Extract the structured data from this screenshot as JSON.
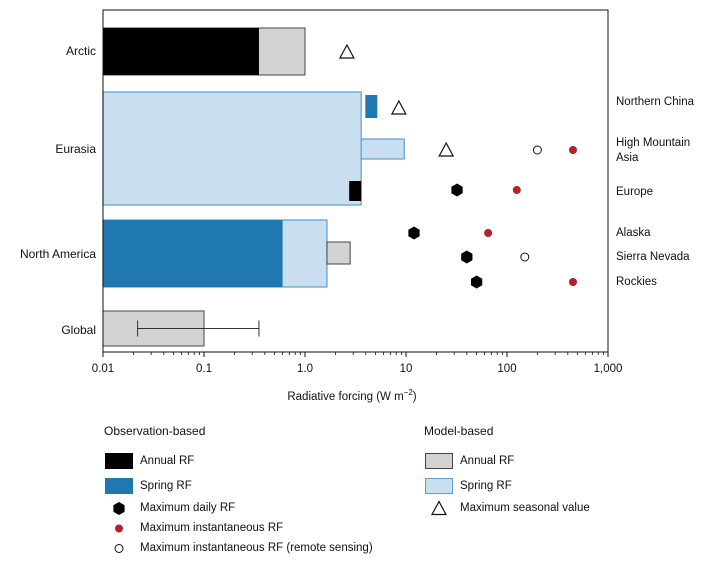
{
  "chart_data": {
    "type": "bar",
    "scale": "log",
    "xlabel": "Radiative forcing (W m",
    "xlabel_sup": "−2",
    "xlabel_end": ")",
    "xlim": [
      0.01,
      1000
    ],
    "ticks": [
      {
        "value": 0.01,
        "label": "0.01"
      },
      {
        "value": 0.1,
        "label": "0.1"
      },
      {
        "value": 1,
        "label": "1.0"
      },
      {
        "value": 10,
        "label": "10"
      },
      {
        "value": 100,
        "label": "100"
      },
      {
        "value": 1000,
        "label": "1,000"
      }
    ],
    "categories": [
      "Arctic",
      "Eurasia",
      "North America",
      "Global"
    ],
    "bars": [
      {
        "category": "Arctic",
        "kind": "model-annual",
        "value": 1.0
      },
      {
        "category": "Arctic",
        "kind": "obs-annual",
        "value": 0.35
      },
      {
        "category": "Eurasia",
        "kind": "model-spring",
        "value": 3.6
      },
      {
        "category": "Eurasia",
        "kind": "obs-spring",
        "value": 5.2,
        "region": "Northern China"
      },
      {
        "category": "Eurasia",
        "kind": "model-spring",
        "value": 9.6,
        "region": "High Mountain Asia"
      },
      {
        "category": "Eurasia",
        "kind": "obs-annual",
        "value": 3.6,
        "region": "Europe"
      },
      {
        "category": "North America",
        "kind": "model-spring",
        "value": 1.65
      },
      {
        "category": "North America",
        "kind": "obs-spring",
        "value": 0.6
      },
      {
        "category": "North America",
        "kind": "model-annual",
        "value": 2.8,
        "region": "Sierra Nevada"
      },
      {
        "category": "Global",
        "kind": "model-annual",
        "value": 0.1,
        "error": [
          0.022,
          0.35
        ]
      }
    ],
    "regions": [
      "Northern China",
      "High Mountain Asia",
      "Europe",
      "Alaska",
      "Sierra Nevada",
      "Rockies"
    ],
    "markers": [
      {
        "category": "Arctic",
        "type": "max-seasonal",
        "value": 2.6
      },
      {
        "region": "Northern China",
        "type": "max-seasonal",
        "value": 8.5
      },
      {
        "region": "High Mountain Asia",
        "type": "max-seasonal",
        "value": 25
      },
      {
        "region": "High Mountain Asia",
        "type": "max-inst-remote",
        "value": 200
      },
      {
        "region": "High Mountain Asia",
        "type": "max-inst",
        "value": 450
      },
      {
        "region": "Europe",
        "type": "max-daily",
        "value": 32
      },
      {
        "region": "Europe",
        "type": "max-inst",
        "value": 125
      },
      {
        "region": "Alaska",
        "type": "max-daily",
        "value": 12
      },
      {
        "region": "Alaska",
        "type": "max-inst",
        "value": 65
      },
      {
        "region": "Sierra Nevada",
        "type": "max-daily",
        "value": 40
      },
      {
        "region": "Sierra Nevada",
        "type": "max-inst-remote",
        "value": 150
      },
      {
        "region": "Rockies",
        "type": "max-daily",
        "value": 50
      },
      {
        "region": "Rockies",
        "type": "max-inst",
        "value": 450
      }
    ],
    "colors": {
      "obs-annual": "#000000",
      "obs-spring": "#1f78b0",
      "model-annual": "#d3d3d3",
      "model-spring": "#c9dff0",
      "model-spring-edge": "#5a9fd0",
      "max-inst": "#b3202a"
    }
  },
  "legend": {
    "observation": {
      "title": "Observation-based",
      "items": [
        {
          "type": "obs-annual",
          "label": "Annual RF"
        },
        {
          "type": "obs-spring",
          "label": "Spring RF"
        },
        {
          "type": "max-daily",
          "label": "Maximum daily RF"
        },
        {
          "type": "max-inst",
          "label": "Maximum instantaneous RF"
        },
        {
          "type": "max-inst-remote",
          "label": "Maximum instantaneous RF (remote sensing)"
        }
      ]
    },
    "model": {
      "title": "Model-based",
      "items": [
        {
          "type": "model-annual",
          "label": "Annual RF"
        },
        {
          "type": "model-spring",
          "label": "Spring RF"
        },
        {
          "type": "max-seasonal",
          "label": "Maximum seasonal value"
        }
      ]
    }
  }
}
